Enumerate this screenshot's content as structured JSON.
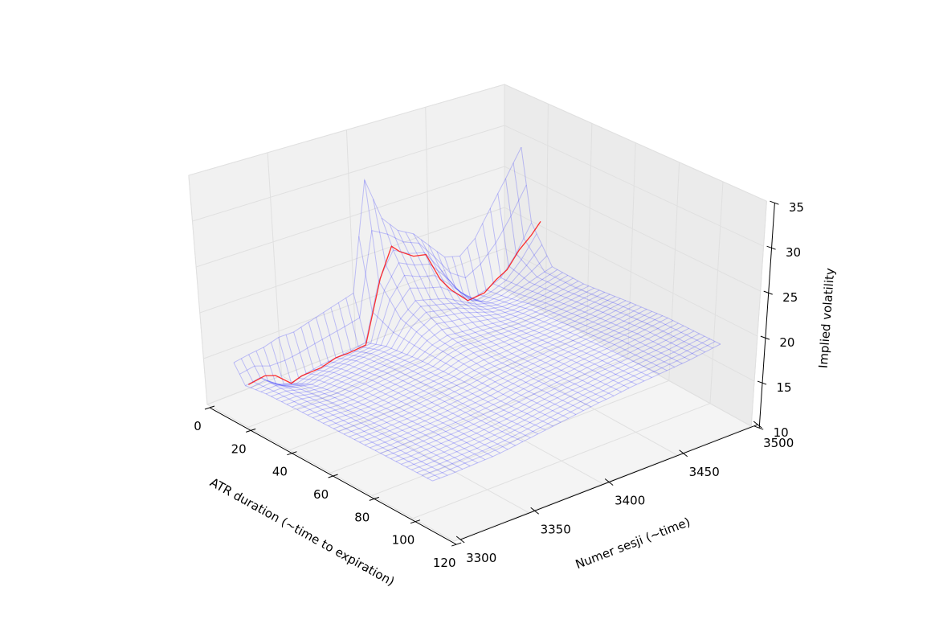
{
  "chart_data": {
    "type": "surface-wireframe-3d",
    "title": "",
    "xlabel": "ATR duration (~time to expiration)",
    "ylabel": "Numer sesji (~time)",
    "zlabel": "Implied volatility",
    "xlim": [
      0,
      120
    ],
    "ylim": [
      3300,
      3500
    ],
    "zlim": [
      10,
      35
    ],
    "xticks": [
      "0",
      "20",
      "40",
      "60",
      "80",
      "100",
      "120"
    ],
    "yticks": [
      "3300",
      "3350",
      "3400",
      "3450",
      "3500"
    ],
    "zticks": [
      "10",
      "15",
      "20",
      "25",
      "30",
      "35"
    ],
    "grid": true,
    "surface_color": "#0000ff",
    "highlight_color": "#ff0000",
    "sessions": [
      3300,
      3310,
      3320,
      3330,
      3340,
      3350,
      3360,
      3370,
      3380,
      3390,
      3400,
      3410,
      3420,
      3430,
      3440,
      3450,
      3460,
      3470,
      3480,
      3490
    ],
    "surface_profiles": [
      {
        "atr": 15,
        "iv": [
          16.5,
          16.8,
          17.0,
          17.5,
          17.5,
          18.0,
          18.5,
          19.0,
          19.5,
          32.0,
          27.0,
          25.0,
          24.0,
          22.0,
          20.0,
          19.5,
          21.0,
          24.0,
          27.0,
          30.0
        ]
      },
      {
        "atr": 20,
        "iv": [
          14.6,
          14.9,
          13.5,
          13.0,
          13.5,
          13.8,
          14.0,
          14.2,
          14.5,
          21.0,
          24.0,
          23.0,
          22.5,
          20.0,
          17.0,
          15.0,
          15.5,
          16.3,
          18.5,
          21.5
        ]
      },
      {
        "atr": 30,
        "iv": [
          15.0,
          15.0,
          14.5,
          14.2,
          14.5,
          14.7,
          15.0,
          15.2,
          15.4,
          18.0,
          19.5,
          19.0,
          18.5,
          17.5,
          16.5,
          16.0,
          16.0,
          16.5,
          17.0,
          17.5
        ]
      },
      {
        "atr": 45,
        "iv": [
          15.2,
          15.2,
          15.0,
          15.0,
          15.2,
          15.4,
          15.6,
          15.8,
          16.0,
          17.0,
          17.5,
          17.3,
          17.2,
          17.0,
          16.8,
          16.8,
          16.9,
          17.0,
          17.2,
          17.4
        ]
      },
      {
        "atr": 65,
        "iv": [
          15.4,
          15.4,
          15.4,
          15.5,
          15.6,
          15.8,
          16.0,
          16.2,
          16.4,
          16.8,
          17.0,
          17.1,
          17.2,
          17.3,
          17.3,
          17.4,
          17.5,
          17.6,
          17.8,
          18.0
        ]
      },
      {
        "atr": 85,
        "iv": [
          15.6,
          15.6,
          15.7,
          15.8,
          15.9,
          16.0,
          16.2,
          16.4,
          16.6,
          16.9,
          17.1,
          17.3,
          17.4,
          17.6,
          17.7,
          17.8,
          18.0,
          18.1,
          18.3,
          18.5
        ]
      },
      {
        "atr": 110,
        "iv": [
          15.8,
          15.8,
          15.9,
          16.0,
          16.1,
          16.3,
          16.5,
          16.7,
          16.9,
          17.1,
          17.3,
          17.5,
          17.6,
          17.8,
          17.9,
          18.0,
          18.1,
          18.2,
          18.4,
          18.6
        ]
      }
    ],
    "highlight_series": {
      "atr": 20,
      "sessions": [
        3302,
        3313,
        3320,
        3330,
        3337,
        3350,
        3360,
        3369,
        3380,
        3391,
        3399,
        3404,
        3413,
        3421,
        3430,
        3437,
        3448,
        3459,
        3467,
        3474,
        3482,
        3490,
        3496
      ],
      "iv": [
        14.6,
        14.9,
        14.5,
        13.0,
        13.4,
        13.5,
        14.0,
        14.0,
        14.2,
        21.2,
        24.5,
        23.6,
        22.5,
        22.2,
        18.7,
        17.0,
        15.0,
        15.2,
        16.3,
        17.0,
        18.8,
        20.0,
        21.2
      ]
    }
  }
}
